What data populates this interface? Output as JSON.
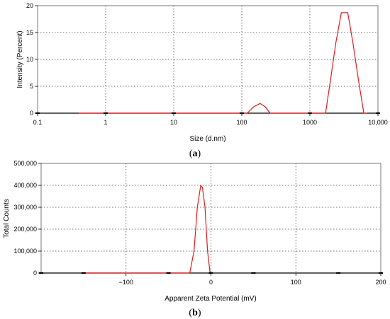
{
  "chart_data": [
    {
      "type": "line",
      "caption": [
        "(",
        "a",
        ")"
      ],
      "xlabel": "Size (d.nm)",
      "ylabel": "Intensity (Percent)",
      "xscale": "log",
      "xlim": [
        0.1,
        10000
      ],
      "ylim": [
        0,
        20
      ],
      "x_ticks": [
        0.1,
        1,
        10,
        100,
        1000,
        10000
      ],
      "x_tick_labels": [
        "0.1",
        "1",
        "10",
        "100",
        "1000",
        "10,000"
      ],
      "y_ticks": [
        0,
        5,
        10,
        15,
        20
      ],
      "y_tick_labels": [
        "0",
        "5",
        "10",
        "15",
        "20"
      ],
      "grid": true,
      "series": [
        {
          "color": "#e31a1c",
          "points": [
            [
              0.4,
              0
            ],
            [
              120,
              0
            ],
            [
              150,
              1.2
            ],
            [
              185,
              1.8
            ],
            [
              220,
              1.2
            ],
            [
              260,
              0
            ],
            [
              1700,
              0
            ],
            [
              2000,
              6
            ],
            [
              2400,
              13
            ],
            [
              2900,
              18.7
            ],
            [
              3600,
              18.7
            ],
            [
              4300,
              13
            ],
            [
              5200,
              6
            ],
            [
              6200,
              0
            ],
            [
              7000,
              0
            ]
          ]
        }
      ],
      "baseline_markers": [
        0.1,
        1,
        10,
        100,
        1000,
        10000
      ]
    },
    {
      "type": "line",
      "caption": [
        "(",
        "b",
        ")"
      ],
      "xlabel": "Apparent Zeta Potential (mV)",
      "ylabel": "Total Counts",
      "xlim": [
        -200,
        200
      ],
      "ylim": [
        0,
        500000
      ],
      "x_ticks": [
        -100,
        0,
        100,
        200
      ],
      "x_tick_labels": [
        "−100",
        "0",
        "100",
        "200"
      ],
      "y_ticks": [
        0,
        100000,
        200000,
        300000,
        400000,
        500000
      ],
      "y_tick_labels": [
        "0",
        "100,000",
        "200,000",
        "300,000",
        "400,000",
        "500,000"
      ],
      "grid": true,
      "series": [
        {
          "color": "#e31a1c",
          "points": [
            [
              -150,
              0
            ],
            [
              -25,
              0
            ],
            [
              -20,
              100000
            ],
            [
              -16,
              300000
            ],
            [
              -12,
              400000
            ],
            [
              -10,
              390000
            ],
            [
              -7,
              300000
            ],
            [
              -4,
              100000
            ],
            [
              -1,
              0
            ],
            [
              3,
              0
            ]
          ]
        }
      ],
      "baseline_markers": [
        -200,
        -150,
        -50,
        0,
        50,
        150,
        200
      ]
    }
  ]
}
